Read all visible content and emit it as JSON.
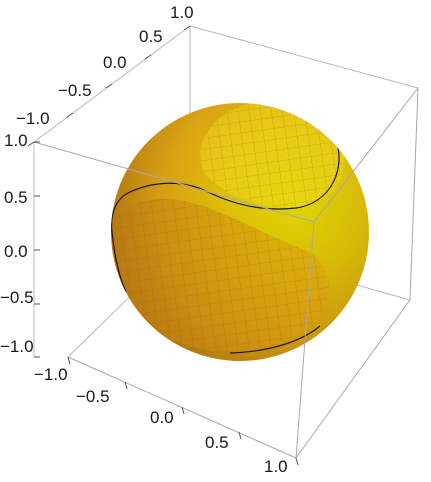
{
  "plot": {
    "type": "3d-surface",
    "axes_box": true,
    "axis_ranges": {
      "x": [
        -1,
        1
      ],
      "y": [
        -1,
        1
      ],
      "z": [
        -1,
        1
      ]
    },
    "colors": {
      "sphere_highlight": "#f2e000",
      "sphere_mid": "#e8b70f",
      "sphere_shadow": "#b77011",
      "box_edges": "#b0b0b0",
      "curve": "#1a1a1a",
      "mesh": "#8a6a20"
    }
  },
  "axis_labels": {
    "upper_y": [
      {
        "text": "1.0"
      },
      {
        "text": "0.5"
      },
      {
        "text": "0.0"
      },
      {
        "text": "−0.5"
      },
      {
        "text": "−1.0"
      }
    ],
    "z": [
      {
        "text": "1.0"
      },
      {
        "text": "0.5"
      },
      {
        "text": "0.0"
      },
      {
        "text": "−0.5"
      },
      {
        "text": "−1.0"
      }
    ],
    "bottom_x": [
      {
        "text": "−1.0"
      },
      {
        "text": "−0.5"
      },
      {
        "text": "0.0"
      },
      {
        "text": "0.5"
      },
      {
        "text": "1.0"
      }
    ]
  }
}
